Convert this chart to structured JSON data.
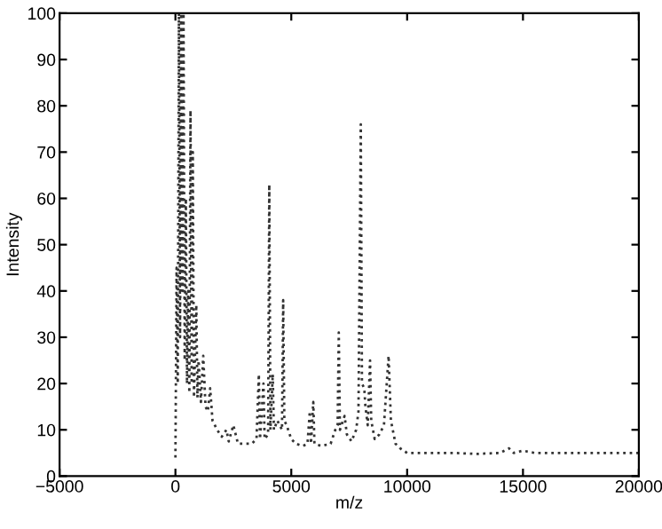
{
  "chart_data": {
    "type": "line",
    "xlabel": "m/z",
    "ylabel": "Intensity",
    "xlim": [
      -5000,
      20000
    ],
    "ylim": [
      0,
      100
    ],
    "xticks": [
      {
        "value": -5000,
        "label": "−5000"
      },
      0,
      5000,
      10000,
      15000,
      20000
    ],
    "yticks": [
      0,
      10,
      20,
      30,
      40,
      50,
      60,
      70,
      80,
      90,
      100
    ],
    "grid": false,
    "line_style": "dotted",
    "series": [
      {
        "color": "#333333",
        "x": [
          0,
          50,
          100,
          150,
          200,
          250,
          300,
          350,
          400,
          450,
          500,
          550,
          600,
          650,
          700,
          750,
          800,
          900,
          950,
          1000,
          1100,
          1200,
          1300,
          1400,
          1500,
          1600,
          1800,
          2000,
          2200,
          2300,
          2500,
          2700,
          3000,
          3300,
          3500,
          3600,
          3650,
          3800,
          3850,
          4000,
          4050,
          4100,
          4200,
          4250,
          4400,
          4600,
          4650,
          4700,
          4800,
          5000,
          5200,
          5500,
          5700,
          5800,
          5850,
          5950,
          6000,
          6300,
          6700,
          6900,
          7000,
          7050,
          7100,
          7300,
          7400,
          7600,
          7800,
          7900,
          8000,
          8050,
          8150,
          8200,
          8300,
          8400,
          8450,
          8600,
          8800,
          9000,
          9200,
          9300,
          9500,
          9700,
          10000,
          11000,
          12000,
          13000,
          14000,
          14400,
          14600,
          15000,
          15500,
          16000,
          18000,
          20000
        ],
        "values": [
          4,
          45,
          20,
          100,
          30,
          100,
          40,
          100,
          25,
          60,
          20,
          40,
          18,
          79,
          20,
          70,
          17,
          37,
          17,
          25,
          16,
          26,
          15,
          14,
          19,
          12,
          10,
          8.5,
          10,
          7.5,
          11,
          7,
          7,
          7,
          8,
          22,
          8,
          20,
          8,
          9,
          63,
          10,
          22,
          10,
          12,
          10,
          38,
          12,
          11,
          8,
          7,
          6.5,
          7,
          14,
          7,
          16,
          7,
          6.5,
          7,
          10,
          11,
          31,
          10,
          13,
          9,
          7.5,
          10,
          14,
          76,
          20,
          19,
          15,
          11,
          25,
          12,
          8,
          9,
          11,
          26,
          12,
          7,
          6,
          5,
          5,
          5,
          4.8,
          5,
          6,
          5,
          5.5,
          5,
          5,
          5,
          5
        ]
      }
    ]
  }
}
